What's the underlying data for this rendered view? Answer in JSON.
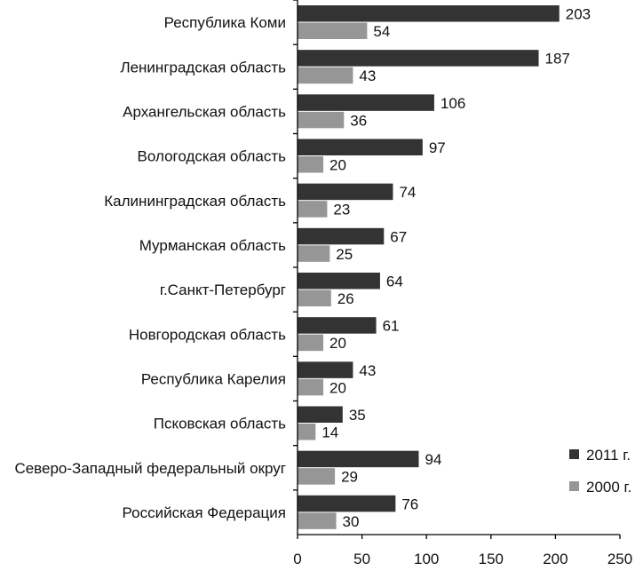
{
  "chart_data": {
    "type": "bar",
    "orientation": "horizontal",
    "title": "",
    "xlabel": "",
    "ylabel": "",
    "xlim": [
      0,
      250
    ],
    "x_ticks": [
      0,
      50,
      100,
      150,
      200,
      250
    ],
    "grid": false,
    "legend_position": "bottom-right",
    "categories": [
      "Республика Коми",
      "Ленинградская область",
      "Архангельская область",
      "Вологодская область",
      "Калининградская область",
      "Мурманская область",
      "г.Санкт-Петербург",
      "Новгородская область",
      "Республика Карелия",
      "Псковская область",
      "Северо-Западный федеральный округ",
      "Российская Федерация"
    ],
    "series": [
      {
        "name": "2011 г.",
        "color": "#333333",
        "values": [
          203,
          187,
          106,
          97,
          74,
          67,
          64,
          61,
          43,
          35,
          94,
          76
        ]
      },
      {
        "name": "2000 г.",
        "color": "#969696",
        "values": [
          54,
          43,
          36,
          20,
          23,
          25,
          26,
          20,
          20,
          14,
          29,
          30
        ]
      }
    ]
  }
}
